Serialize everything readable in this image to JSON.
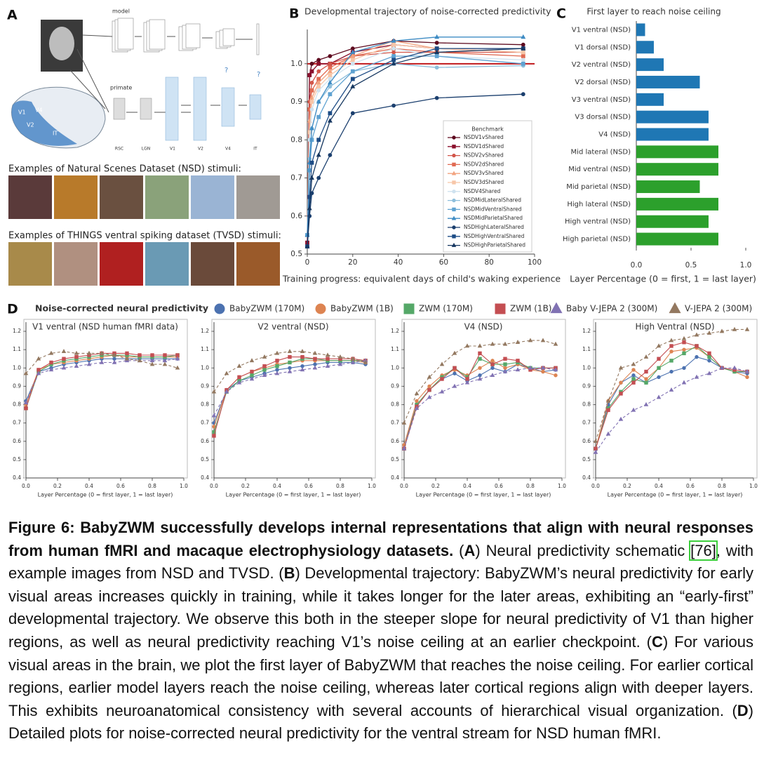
{
  "panel_a": {
    "label": "A",
    "model": "model",
    "primate": "primate",
    "question": "?",
    "brain_labels": [
      "V1",
      "V4",
      "V2",
      "IT"
    ],
    "stage_labels": [
      "RSC",
      "LGN",
      "V1",
      "V2",
      "V4",
      "IT"
    ],
    "nsd_heading": "Examples of Natural Scenes Dataset (NSD) stimuli:",
    "tvsd_heading": "Examples of THINGS ventral spiking dataset (TVSD) stimuli:"
  },
  "chart_data": [
    {
      "type": "line",
      "panel": "B",
      "title": "Developmental trajectory of noise-corrected predictivity",
      "xlabel": "Training progress: equivalent days of child's waking experience",
      "legend_title": "Benchmark",
      "x": [
        0,
        1,
        2,
        5,
        10,
        20,
        38,
        57,
        95
      ],
      "xlim": [
        0,
        100
      ],
      "xticks": [
        0,
        20,
        40,
        60,
        80,
        100
      ],
      "ylim": [
        0.5,
        1.09
      ],
      "yticks": [
        0.5,
        0.6,
        0.7,
        0.8,
        0.9,
        {
          "value": 1,
          "label": "1.0"
        }
      ],
      "reference_line": {
        "value": 1,
        "color": "#c0181b"
      },
      "series": [
        {
          "name": "NSDV1vShared",
          "color": "#5e0a1f",
          "marker": "circle",
          "values": [
            0.52,
            0.97,
            1.0,
            1.01,
            1.02,
            1.04,
            1.06,
            1.055,
            1.05
          ]
        },
        {
          "name": "NSDV1dShared",
          "color": "#8a0f2c",
          "marker": "square",
          "values": [
            0.53,
            0.97,
            0.98,
            1.0,
            1.0,
            1.03,
            1.05,
            1.04,
            1.04
          ]
        },
        {
          "name": "NSDV2vShared",
          "color": "#d2564a",
          "marker": "circle",
          "values": [
            0.55,
            0.9,
            0.95,
            0.98,
            1.0,
            1.02,
            1.03,
            1.03,
            1.03
          ]
        },
        {
          "name": "NSDV2dShared",
          "color": "#e06a52",
          "marker": "square",
          "values": [
            0.55,
            0.88,
            0.93,
            0.96,
            0.99,
            1.02,
            1.04,
            1.03,
            1.02
          ]
        },
        {
          "name": "NSDV3vShared",
          "color": "#f2a27e",
          "marker": "triangle",
          "values": [
            0.55,
            0.85,
            0.91,
            0.95,
            0.98,
            1.02,
            1.06,
            1.04,
            1.03
          ]
        },
        {
          "name": "NSDV3dShared",
          "color": "#f7c6a8",
          "marker": "square",
          "values": [
            0.55,
            0.82,
            0.9,
            0.94,
            0.97,
            1.01,
            1.05,
            1.04,
            1.03
          ]
        },
        {
          "name": "NSDV4Shared",
          "color": "#cfe2ef",
          "marker": "circle",
          "values": [
            0.55,
            0.8,
            0.88,
            0.93,
            0.96,
            1.0,
            1.04,
            1.02,
            1.01
          ]
        },
        {
          "name": "NSDMidLateralShared",
          "color": "#8ebfdc",
          "marker": "circle",
          "values": [
            0.55,
            0.75,
            0.83,
            0.9,
            0.94,
            0.98,
            1.0,
            0.99,
            0.995
          ]
        },
        {
          "name": "NSDMidVentralShared",
          "color": "#5fa2d1",
          "marker": "square",
          "values": [
            0.55,
            0.72,
            0.8,
            0.86,
            0.92,
            0.98,
            1.02,
            1.02,
            1.0
          ]
        },
        {
          "name": "NSDMidParietalShared",
          "color": "#3f8cc4",
          "marker": "triangle",
          "values": [
            0.55,
            0.74,
            0.83,
            0.9,
            0.95,
            1.03,
            1.06,
            1.07,
            1.07
          ]
        },
        {
          "name": "NSDHighLateralShared",
          "color": "#1b3f6e",
          "marker": "circle",
          "values": [
            0.52,
            0.6,
            0.66,
            0.7,
            0.76,
            0.87,
            0.89,
            0.91,
            0.92
          ]
        },
        {
          "name": "NSDHighVentralShared",
          "color": "#1d4c86",
          "marker": "square",
          "values": [
            0.52,
            0.65,
            0.74,
            0.8,
            0.87,
            0.96,
            1.01,
            1.04,
            1.04
          ]
        },
        {
          "name": "NSDHighParietalShared",
          "color": "#163760",
          "marker": "triangle",
          "values": [
            0.52,
            0.62,
            0.7,
            0.76,
            0.85,
            0.94,
            1.0,
            1.03,
            1.04
          ]
        }
      ]
    },
    {
      "type": "hbar",
      "panel": "C",
      "title": "First layer to reach noise ceiling",
      "xlabel": "Layer Percentage (0 = first, 1 = last layer)",
      "xlim": [
        0,
        1
      ],
      "xticks": [
        {
          "value": 0,
          "label": "0.0"
        },
        0.5,
        {
          "value": 1,
          "label": "1.0"
        }
      ],
      "categories": [
        "V1 ventral (NSD)",
        "V1 dorsal (NSD)",
        "V2 ventral (NSD)",
        "V2 dorsal (NSD)",
        "V3 ventral (NSD)",
        "V3 dorsal (NSD)",
        "V4 (NSD)",
        "Mid lateral (NSD)",
        "Mid ventral (NSD)",
        "Mid parietal (NSD)",
        "High lateral (NSD)",
        "High ventral (NSD)",
        "High parietal (NSD)"
      ],
      "values": [
        0.08,
        0.16,
        0.25,
        0.58,
        0.25,
        0.66,
        0.66,
        0.75,
        0.75,
        0.58,
        0.75,
        0.66,
        0.75
      ],
      "colors": [
        "#1f77b4",
        "#1f77b4",
        "#1f77b4",
        "#1f77b4",
        "#1f77b4",
        "#1f77b4",
        "#1f77b4",
        "#2ca02c",
        "#2ca02c",
        "#2ca02c",
        "#2ca02c",
        "#2ca02c",
        "#2ca02c"
      ]
    },
    {
      "type": "multiline",
      "panel": "D",
      "title": "Noise-corrected neural predictivity",
      "xlabel": "Layer Percentage (0 = first layer, 1 = last layer)",
      "x": [
        0,
        0.08,
        0.16,
        0.24,
        0.32,
        0.4,
        0.48,
        0.56,
        0.64,
        0.72,
        0.8,
        0.88,
        0.96
      ],
      "xlim": [
        0,
        1
      ],
      "xticks": [
        {
          "value": 0,
          "label": "0.0"
        },
        0.2,
        0.4,
        0.6,
        0.8,
        {
          "value": 1,
          "label": "1.0"
        }
      ],
      "ylim": [
        0.4,
        1.25
      ],
      "yticks": [
        0.4,
        0.5,
        0.6,
        0.7,
        0.8,
        0.9,
        {
          "value": 1,
          "label": "1.0"
        },
        1.1,
        1.2
      ],
      "series": [
        {
          "name": "BabyZWM (170M)",
          "color": "#4c72b0",
          "marker": "circle",
          "dashed": false
        },
        {
          "name": "BabyZWM (1B)",
          "color": "#dd8452",
          "marker": "circle",
          "dashed": false
        },
        {
          "name": "ZWM (170M)",
          "color": "#55a868",
          "marker": "square",
          "dashed": false
        },
        {
          "name": "ZWM (1B)",
          "color": "#c44e52",
          "marker": "square",
          "dashed": false
        },
        {
          "name": "Baby V-JEPA 2 (300M)",
          "color": "#8172b3",
          "marker": "triangle",
          "dashed": true
        },
        {
          "name": "V-JEPA 2 (300M)",
          "color": "#937860",
          "marker": "triangle",
          "dashed": true
        }
      ],
      "panels": [
        {
          "title": "V1 ventral (NSD human fMRI data)",
          "values": [
            [
              0.82,
              0.98,
              1.0,
              1.02,
              1.03,
              1.04,
              1.05,
              1.05,
              1.05,
              1.05,
              1.05,
              1.05,
              1.05
            ],
            [
              0.8,
              0.99,
              1.02,
              1.03,
              1.04,
              1.05,
              1.06,
              1.07,
              1.06,
              1.06,
              1.06,
              1.06,
              1.06
            ],
            [
              0.78,
              0.98,
              1.02,
              1.04,
              1.05,
              1.06,
              1.07,
              1.07,
              1.07,
              1.06,
              1.06,
              1.06,
              1.07
            ],
            [
              0.78,
              0.99,
              1.03,
              1.05,
              1.06,
              1.07,
              1.08,
              1.08,
              1.08,
              1.07,
              1.07,
              1.07,
              1.07
            ],
            [
              0.81,
              0.97,
              0.99,
              1.0,
              1.01,
              1.02,
              1.03,
              1.03,
              1.04,
              1.04,
              1.04,
              1.04,
              1.05
            ],
            [
              0.97,
              1.05,
              1.08,
              1.09,
              1.08,
              1.08,
              1.08,
              1.07,
              1.05,
              1.04,
              1.02,
              1.02,
              1.0
            ]
          ]
        },
        {
          "title": "V2 ventral (NSD)",
          "values": [
            [
              0.7,
              0.88,
              0.93,
              0.95,
              0.97,
              0.99,
              1.0,
              1.01,
              1.02,
              1.03,
              1.03,
              1.03,
              1.02
            ],
            [
              0.68,
              0.88,
              0.95,
              0.98,
              1.0,
              1.02,
              1.03,
              1.04,
              1.04,
              1.04,
              1.04,
              1.04,
              1.03
            ],
            [
              0.65,
              0.87,
              0.93,
              0.96,
              0.99,
              1.01,
              1.03,
              1.05,
              1.05,
              1.04,
              1.04,
              1.04,
              1.04
            ],
            [
              0.63,
              0.88,
              0.95,
              0.98,
              1.01,
              1.04,
              1.06,
              1.06,
              1.05,
              1.05,
              1.05,
              1.05,
              1.04
            ],
            [
              0.74,
              0.87,
              0.92,
              0.94,
              0.96,
              0.97,
              0.98,
              0.99,
              1.0,
              1.01,
              1.02,
              1.03,
              1.04
            ],
            [
              0.87,
              0.97,
              1.01,
              1.04,
              1.06,
              1.08,
              1.09,
              1.09,
              1.08,
              1.07,
              1.06,
              1.05,
              1.03
            ]
          ]
        },
        {
          "title": "V4 (NSD)",
          "values": [
            [
              0.58,
              0.8,
              0.88,
              0.94,
              0.97,
              0.93,
              0.96,
              1.0,
              0.98,
              1.02,
              1.0,
              0.98,
              0.99
            ],
            [
              0.58,
              0.82,
              0.9,
              0.96,
              0.99,
              0.96,
              1.0,
              1.04,
              1.0,
              1.02,
              0.99,
              0.98,
              0.96
            ],
            [
              0.56,
              0.8,
              0.88,
              0.95,
              1.0,
              0.95,
              1.05,
              1.02,
              1.02,
              1.03,
              1.0,
              1.0,
              1.0
            ],
            [
              0.56,
              0.79,
              0.88,
              0.94,
              1.0,
              0.94,
              1.08,
              1.02,
              1.05,
              1.04,
              0.99,
              1.0,
              1.0
            ],
            [
              0.56,
              0.78,
              0.84,
              0.87,
              0.9,
              0.92,
              0.94,
              0.96,
              0.98,
              0.99,
              1.0,
              1.0,
              0.99
            ],
            [
              0.7,
              0.86,
              0.95,
              1.02,
              1.08,
              1.12,
              1.12,
              1.13,
              1.13,
              1.14,
              1.15,
              1.15,
              1.13
            ]
          ]
        },
        {
          "title": "High Ventral (NSD)",
          "values": [
            [
              0.56,
              0.8,
              0.92,
              0.96,
              0.92,
              0.95,
              0.98,
              1.0,
              1.06,
              1.04,
              1.0,
              0.98,
              0.97
            ],
            [
              0.56,
              0.82,
              0.92,
              0.99,
              0.94,
              1.0,
              1.09,
              1.1,
              1.11,
              1.06,
              1.0,
              0.98,
              0.95
            ],
            [
              0.56,
              0.78,
              0.87,
              0.94,
              0.92,
              1.0,
              1.04,
              1.08,
              1.12,
              1.06,
              1.0,
              0.98,
              0.98
            ],
            [
              0.56,
              0.77,
              0.86,
              0.92,
              0.98,
              1.05,
              1.12,
              1.14,
              1.12,
              1.08,
              1.0,
              0.99,
              0.98
            ],
            [
              0.54,
              0.64,
              0.72,
              0.77,
              0.8,
              0.84,
              0.88,
              0.92,
              0.95,
              0.97,
              1.0,
              1.0,
              0.98
            ],
            [
              0.6,
              0.82,
              1.0,
              1.02,
              1.06,
              1.12,
              1.15,
              1.16,
              1.18,
              1.19,
              1.2,
              1.21,
              1.21
            ]
          ]
        }
      ]
    }
  ],
  "caption": [
    {
      "text": "Figure 6: BabyZWM successfully develops internal representations that align with neural responses from human fMRI and macaque electrophysiology datasets.",
      "style": "bold"
    },
    {
      "text": " (",
      "style": "plain"
    },
    {
      "text": "A",
      "style": "bold"
    },
    {
      "text": ") Neural predictivity schematic ",
      "style": "plain"
    },
    {
      "text": "[76]",
      "style": "cite"
    },
    {
      "text": ", with example images from NSD and TVSD. (",
      "style": "plain"
    },
    {
      "text": "B",
      "style": "bold"
    },
    {
      "text": ") Developmental trajectory: BabyZWM’s neural predictivity for early visual areas increases quickly in training, while it takes longer for the later areas, exhibiting an “early-first” developmental trajectory. We observe this both in the steeper slope for neural predictivity of V1 than higher regions, as well as neural predictivity reaching V1’s noise ceiling at an earlier checkpoint. (",
      "style": "plain"
    },
    {
      "text": "C",
      "style": "bold"
    },
    {
      "text": ") For various visual areas in the brain, we plot the first layer of BabyZWM that reaches the noise ceiling. For earlier cortical regions, earlier model layers reach the noise ceiling, whereas later cortical regions align with deeper layers. This exhibits neuroanatomical consistency with several accounts of hierarchical visual organization. (",
      "style": "plain"
    },
    {
      "text": "D",
      "style": "bold"
    },
    {
      "text": ") Detailed plots for noise-corrected neural predictivity for the ventral stream for NSD human fMRI.",
      "style": "plain"
    }
  ]
}
